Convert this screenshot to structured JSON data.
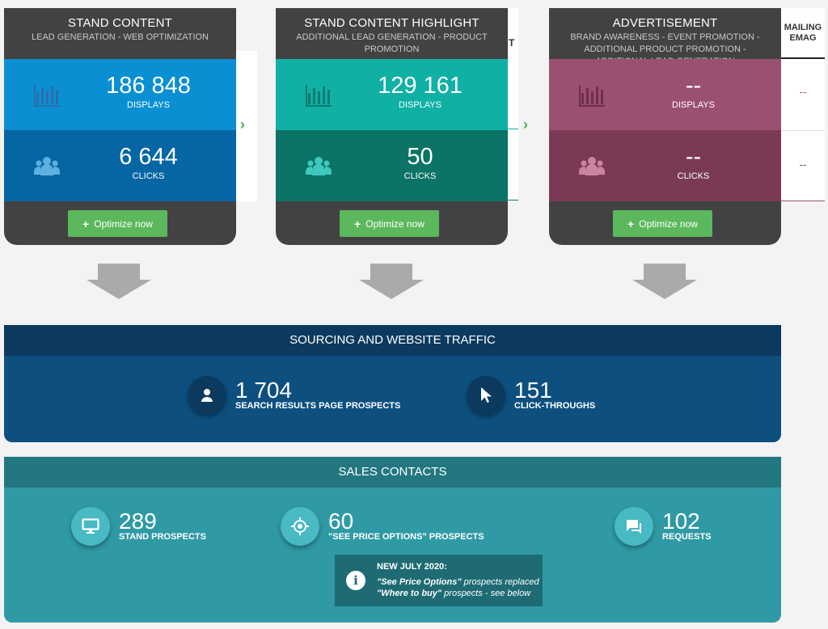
{
  "cards": [
    {
      "title": "STAND CONTENT",
      "subtitle": "LEAD GENERATION - WEB OPTIMIZATION",
      "displays": "186 848",
      "displays_label": "DISPLAYS",
      "clicks": "6 644",
      "clicks_label": "CLICKS",
      "optimize_label": "Optimize now",
      "color_top": "#0a8fd3",
      "color_bottom": "#0666a4",
      "icon_color": "#5fb0e0"
    },
    {
      "title": "STAND CONTENT HIGHLIGHT",
      "subtitle": "ADDITIONAL LEAD GENERATION - PRODUCT PROMOTION",
      "displays": "129 161",
      "displays_label": "DISPLAYS",
      "clicks": "50",
      "clicks_label": "CLICKS",
      "optimize_label": "Optimize now",
      "color_top": "#10b0a5",
      "color_bottom": "#0b7466",
      "icon_color": "#3fc9be"
    },
    {
      "title": "ADVERTISEMENT",
      "subtitle": "BRAND AWARENESS - EVENT PROMOTION - ADDITIONAL PRODUCT PROMOTION - ADDITIONAL LEAD GENERATION",
      "displays": "--",
      "displays_label": "DISPLAYS",
      "clicks": "--",
      "clicks_label": "CLICKS",
      "optimize_label": "Optimize now",
      "color_top": "#9b5072",
      "color_bottom": "#7a3a55",
      "icon_color": "#c9859f"
    }
  ],
  "card2_side_fragment": "T",
  "mailing": {
    "header": "MAILING\nEMAG",
    "row1": "--",
    "row2": "--"
  },
  "sourcing": {
    "title": "SOURCING AND WEBSITE TRAFFIC",
    "stats": [
      {
        "value": "1 704",
        "label": "SEARCH RESULTS PAGE PROSPECTS",
        "icon": "person-icon"
      },
      {
        "value": "151",
        "label": "CLICK-THROUGHS",
        "icon": "cursor-icon"
      }
    ]
  },
  "sales": {
    "title": "SALES CONTACTS",
    "stats": [
      {
        "value": "289",
        "label": "STAND PROSPECTS",
        "icon": "monitor-icon"
      },
      {
        "value": "60",
        "label": "\"SEE PRICE OPTIONS\" PROSPECTS",
        "icon": "target-icon"
      },
      {
        "value": "102",
        "label": "REQUESTS",
        "icon": "chat-icon"
      }
    ]
  },
  "note": {
    "title": "NEW JULY 2020:",
    "line1_em": "\"See Price Options\"",
    "line1_rest": " prospects replaced",
    "line2_em": "\"Where to buy\"",
    "line2_rest": " prospects - see below"
  },
  "colors": {
    "card_dark": "#424242",
    "optimize_green": "#5cb85c",
    "sourcing_head": "#0b3a5e",
    "sourcing_body": "#0d5080",
    "sales_head": "#237780",
    "sales_body": "#2f9aa5"
  }
}
